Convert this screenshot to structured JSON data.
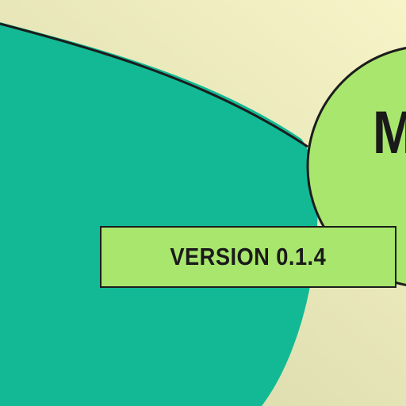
{
  "colors": {
    "background_light": "#f7f5c8",
    "background_dark": "#d8d8aa",
    "teal_shape": "#13b995",
    "green_accent": "#a8e66d",
    "outline": "#1c1c1c"
  },
  "badge": {
    "label": "VERSION 0.1.4"
  },
  "circle": {
    "letter": "M"
  }
}
